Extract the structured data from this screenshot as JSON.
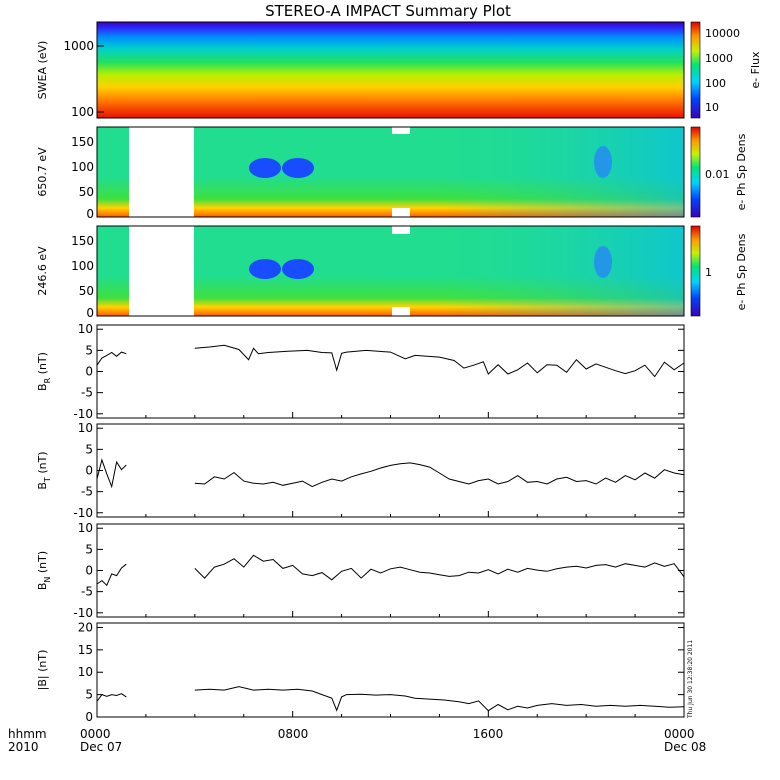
{
  "chart_data": {
    "title": "STEREO-A IMPACT Summary Plot",
    "x_axis": {
      "ticks": [
        "0000",
        "0800",
        "1600",
        "0000"
      ],
      "dates": [
        "Dec 07",
        "",
        "",
        "Dec 08"
      ],
      "corner_labels": [
        "hhmm",
        "2010"
      ],
      "range_hours": [
        0,
        24
      ]
    },
    "timestamp": "Thu Jun 30 12:38:20 2011",
    "panels": [
      {
        "id": "swea",
        "type": "heatmap",
        "ylabel": "SWEA (eV)",
        "yscale": "log",
        "ylim": [
          95,
          2000
        ],
        "yticks": [
          "1000",
          "100"
        ],
        "colorbar_label": "e- Flux",
        "colorbar_ticks": [
          "10000",
          "1000",
          "100",
          "10"
        ],
        "description_levels": [
          "red at low energy",
          "yellow",
          "green",
          "cyan",
          "blue at high energy"
        ]
      },
      {
        "id": "pad650",
        "type": "heatmap",
        "ylabel": "650.7 eV",
        "ylim": [
          0,
          180
        ],
        "yticks": [
          "150",
          "100",
          "50",
          "0"
        ],
        "colorbar_label": "e- Ph Sp Dens",
        "colorbar_ticks": [
          "0.01"
        ],
        "data_gaps_hours": [
          [
            1.3,
            4.1
          ]
        ]
      },
      {
        "id": "pad246",
        "type": "heatmap",
        "ylabel": "246.6 eV",
        "ylim": [
          0,
          180
        ],
        "yticks": [
          "150",
          "100",
          "50",
          "0"
        ],
        "colorbar_label": "e- Ph Sp Dens",
        "colorbar_ticks": [
          "1"
        ],
        "data_gaps_hours": [
          [
            1.3,
            4.1
          ]
        ]
      },
      {
        "id": "br",
        "type": "line",
        "ylabel_main": "B",
        "ylabel_sub": "R",
        "ylabel_unit": "(nT)",
        "ylim": [
          -11,
          11
        ],
        "yticks": [
          "10",
          "5",
          "0",
          "-5",
          "-10"
        ],
        "segments": [
          {
            "x": [
              0.0,
              0.2,
              0.4,
              0.6,
              0.8,
              1.0,
              1.2
            ],
            "y": [
              1.5,
              3.2,
              3.8,
              4.5,
              3.6,
              4.6,
              4.2
            ]
          },
          {
            "x": [
              4.0,
              4.6,
              5.2,
              5.8,
              6.2,
              6.4,
              6.6,
              7.0,
              7.8,
              8.6,
              9.2,
              9.6,
              9.8,
              10.0,
              10.2,
              11.0,
              12.0,
              12.6,
              13.0,
              14.0,
              14.6,
              15.0,
              15.4,
              15.8,
              16.0,
              16.4,
              16.8,
              17.2,
              17.6,
              18.0,
              18.4,
              18.8,
              19.2,
              19.6,
              20.0,
              20.4,
              20.8,
              21.2,
              21.6,
              22.0,
              22.4,
              22.8,
              23.2,
              23.6,
              24.0
            ],
            "y": [
              5.5,
              5.8,
              6.2,
              5.2,
              2.8,
              5.5,
              4.2,
              4.5,
              4.8,
              5.0,
              4.5,
              4.4,
              0.3,
              4.3,
              4.6,
              5.0,
              4.6,
              3.0,
              3.8,
              3.4,
              2.6,
              0.8,
              1.5,
              2.3,
              -0.6,
              1.6,
              -0.6,
              0.4,
              2.0,
              -0.3,
              1.6,
              1.5,
              -0.2,
              2.8,
              0.6,
              1.8,
              1.0,
              0.2,
              -0.5,
              0.2,
              1.5,
              -1.2,
              2.2,
              0.4,
              2.0
            ]
          }
        ]
      },
      {
        "id": "bt",
        "type": "line",
        "ylabel_main": "B",
        "ylabel_sub": "T",
        "ylabel_unit": "(nT)",
        "ylim": [
          -11,
          11
        ],
        "yticks": [
          "10",
          "5",
          "0",
          "-5",
          "-10"
        ],
        "segments": [
          {
            "x": [
              0.0,
              0.2,
              0.4,
              0.6,
              0.8,
              1.0,
              1.2
            ],
            "y": [
              -2.0,
              2.5,
              -0.8,
              -3.8,
              2.0,
              0.2,
              1.3
            ]
          },
          {
            "x": [
              4.0,
              4.4,
              4.8,
              5.2,
              5.6,
              6.0,
              6.4,
              6.8,
              7.2,
              7.6,
              8.0,
              8.4,
              8.8,
              9.2,
              9.6,
              10.0,
              10.4,
              10.8,
              11.2,
              11.6,
              12.0,
              12.4,
              12.8,
              13.2,
              13.6,
              14.0,
              14.4,
              14.8,
              15.2,
              15.6,
              16.0,
              16.4,
              16.8,
              17.2,
              17.6,
              18.0,
              18.4,
              18.8,
              19.2,
              19.6,
              20.0,
              20.4,
              20.8,
              21.2,
              21.6,
              22.0,
              22.4,
              22.8,
              23.2,
              23.6,
              24.0
            ],
            "y": [
              -3.0,
              -3.2,
              -1.5,
              -2.0,
              -0.5,
              -2.5,
              -3.0,
              -3.2,
              -2.8,
              -3.5,
              -3.0,
              -2.5,
              -3.8,
              -2.8,
              -2.0,
              -2.5,
              -1.5,
              -0.8,
              -0.2,
              0.6,
              1.2,
              1.6,
              1.8,
              1.4,
              0.8,
              -0.6,
              -2.0,
              -2.6,
              -3.2,
              -2.4,
              -2.0,
              -3.2,
              -2.6,
              -1.2,
              -2.8,
              -2.6,
              -3.2,
              -2.0,
              -1.6,
              -2.6,
              -2.4,
              -3.2,
              -1.8,
              -2.8,
              -1.2,
              -2.2,
              -0.6,
              -1.8,
              0.2,
              -0.6,
              -1.0
            ]
          }
        ]
      },
      {
        "id": "bn",
        "type": "line",
        "ylabel_main": "B",
        "ylabel_sub": "N",
        "ylabel_unit": "(nT)",
        "ylim": [
          -11,
          11
        ],
        "yticks": [
          "10",
          "5",
          "0",
          "-5",
          "-10"
        ],
        "segments": [
          {
            "x": [
              0.0,
              0.2,
              0.4,
              0.6,
              0.8,
              1.0,
              1.2
            ],
            "y": [
              -3.2,
              -2.4,
              -3.5,
              -0.8,
              -1.2,
              0.6,
              1.5
            ]
          },
          {
            "x": [
              4.0,
              4.4,
              4.8,
              5.2,
              5.6,
              6.0,
              6.4,
              6.8,
              7.2,
              7.6,
              8.0,
              8.4,
              8.8,
              9.2,
              9.6,
              10.0,
              10.4,
              10.8,
              11.2,
              11.6,
              12.0,
              12.4,
              12.8,
              13.2,
              13.6,
              14.0,
              14.4,
              14.8,
              15.2,
              15.6,
              16.0,
              16.4,
              16.8,
              17.2,
              17.6,
              18.0,
              18.4,
              18.8,
              19.2,
              19.6,
              20.0,
              20.4,
              20.8,
              21.2,
              21.6,
              22.0,
              22.4,
              22.8,
              23.2,
              23.6,
              24.0
            ],
            "y": [
              0.5,
              -1.8,
              0.8,
              1.5,
              2.8,
              0.8,
              3.6,
              2.2,
              2.6,
              0.5,
              1.2,
              -0.8,
              -1.2,
              -0.5,
              -2.2,
              -0.2,
              0.5,
              -1.8,
              0.3,
              -0.6,
              0.4,
              0.8,
              0.2,
              -0.4,
              -0.6,
              -1.0,
              -1.4,
              -1.2,
              -0.4,
              -0.6,
              0.2,
              -0.8,
              0.3,
              -0.4,
              0.5,
              0.1,
              -0.2,
              0.4,
              0.8,
              1.0,
              0.6,
              1.2,
              1.4,
              0.8,
              1.6,
              1.2,
              0.8,
              1.8,
              1.0,
              1.6,
              -1.5
            ]
          }
        ]
      },
      {
        "id": "bmag",
        "type": "line",
        "ylabel_main": "|B| (nT)",
        "ylim": [
          0,
          21
        ],
        "yticks": [
          "20",
          "15",
          "10",
          "5",
          "0"
        ],
        "segments": [
          {
            "x": [
              0.0,
              0.2,
              0.4,
              0.6,
              0.8,
              1.0,
              1.2
            ],
            "y": [
              3.5,
              5.0,
              4.6,
              5.0,
              4.8,
              5.2,
              4.5
            ]
          },
          {
            "x": [
              4.0,
              4.6,
              5.2,
              5.8,
              6.4,
              7.0,
              7.6,
              8.2,
              8.8,
              9.2,
              9.6,
              9.8,
              10.0,
              10.2,
              10.8,
              11.4,
              12.0,
              12.6,
              13.0,
              13.6,
              14.2,
              14.8,
              15.2,
              15.6,
              16.0,
              16.4,
              16.8,
              17.2,
              17.6,
              18.0,
              18.6,
              19.2,
              19.8,
              20.4,
              21.0,
              21.6,
              22.2,
              22.8,
              23.4,
              24.0
            ],
            "y": [
              6.0,
              6.2,
              6.0,
              6.8,
              6.0,
              6.2,
              6.0,
              6.2,
              5.8,
              5.0,
              4.2,
              1.5,
              4.5,
              5.0,
              5.1,
              4.9,
              5.0,
              4.7,
              4.2,
              4.0,
              3.8,
              3.4,
              3.0,
              3.6,
              1.4,
              2.8,
              1.6,
              2.4,
              2.0,
              2.6,
              3.0,
              2.6,
              2.8,
              2.4,
              2.6,
              2.4,
              2.6,
              2.4,
              2.2,
              2.3
            ]
          }
        ]
      }
    ]
  }
}
